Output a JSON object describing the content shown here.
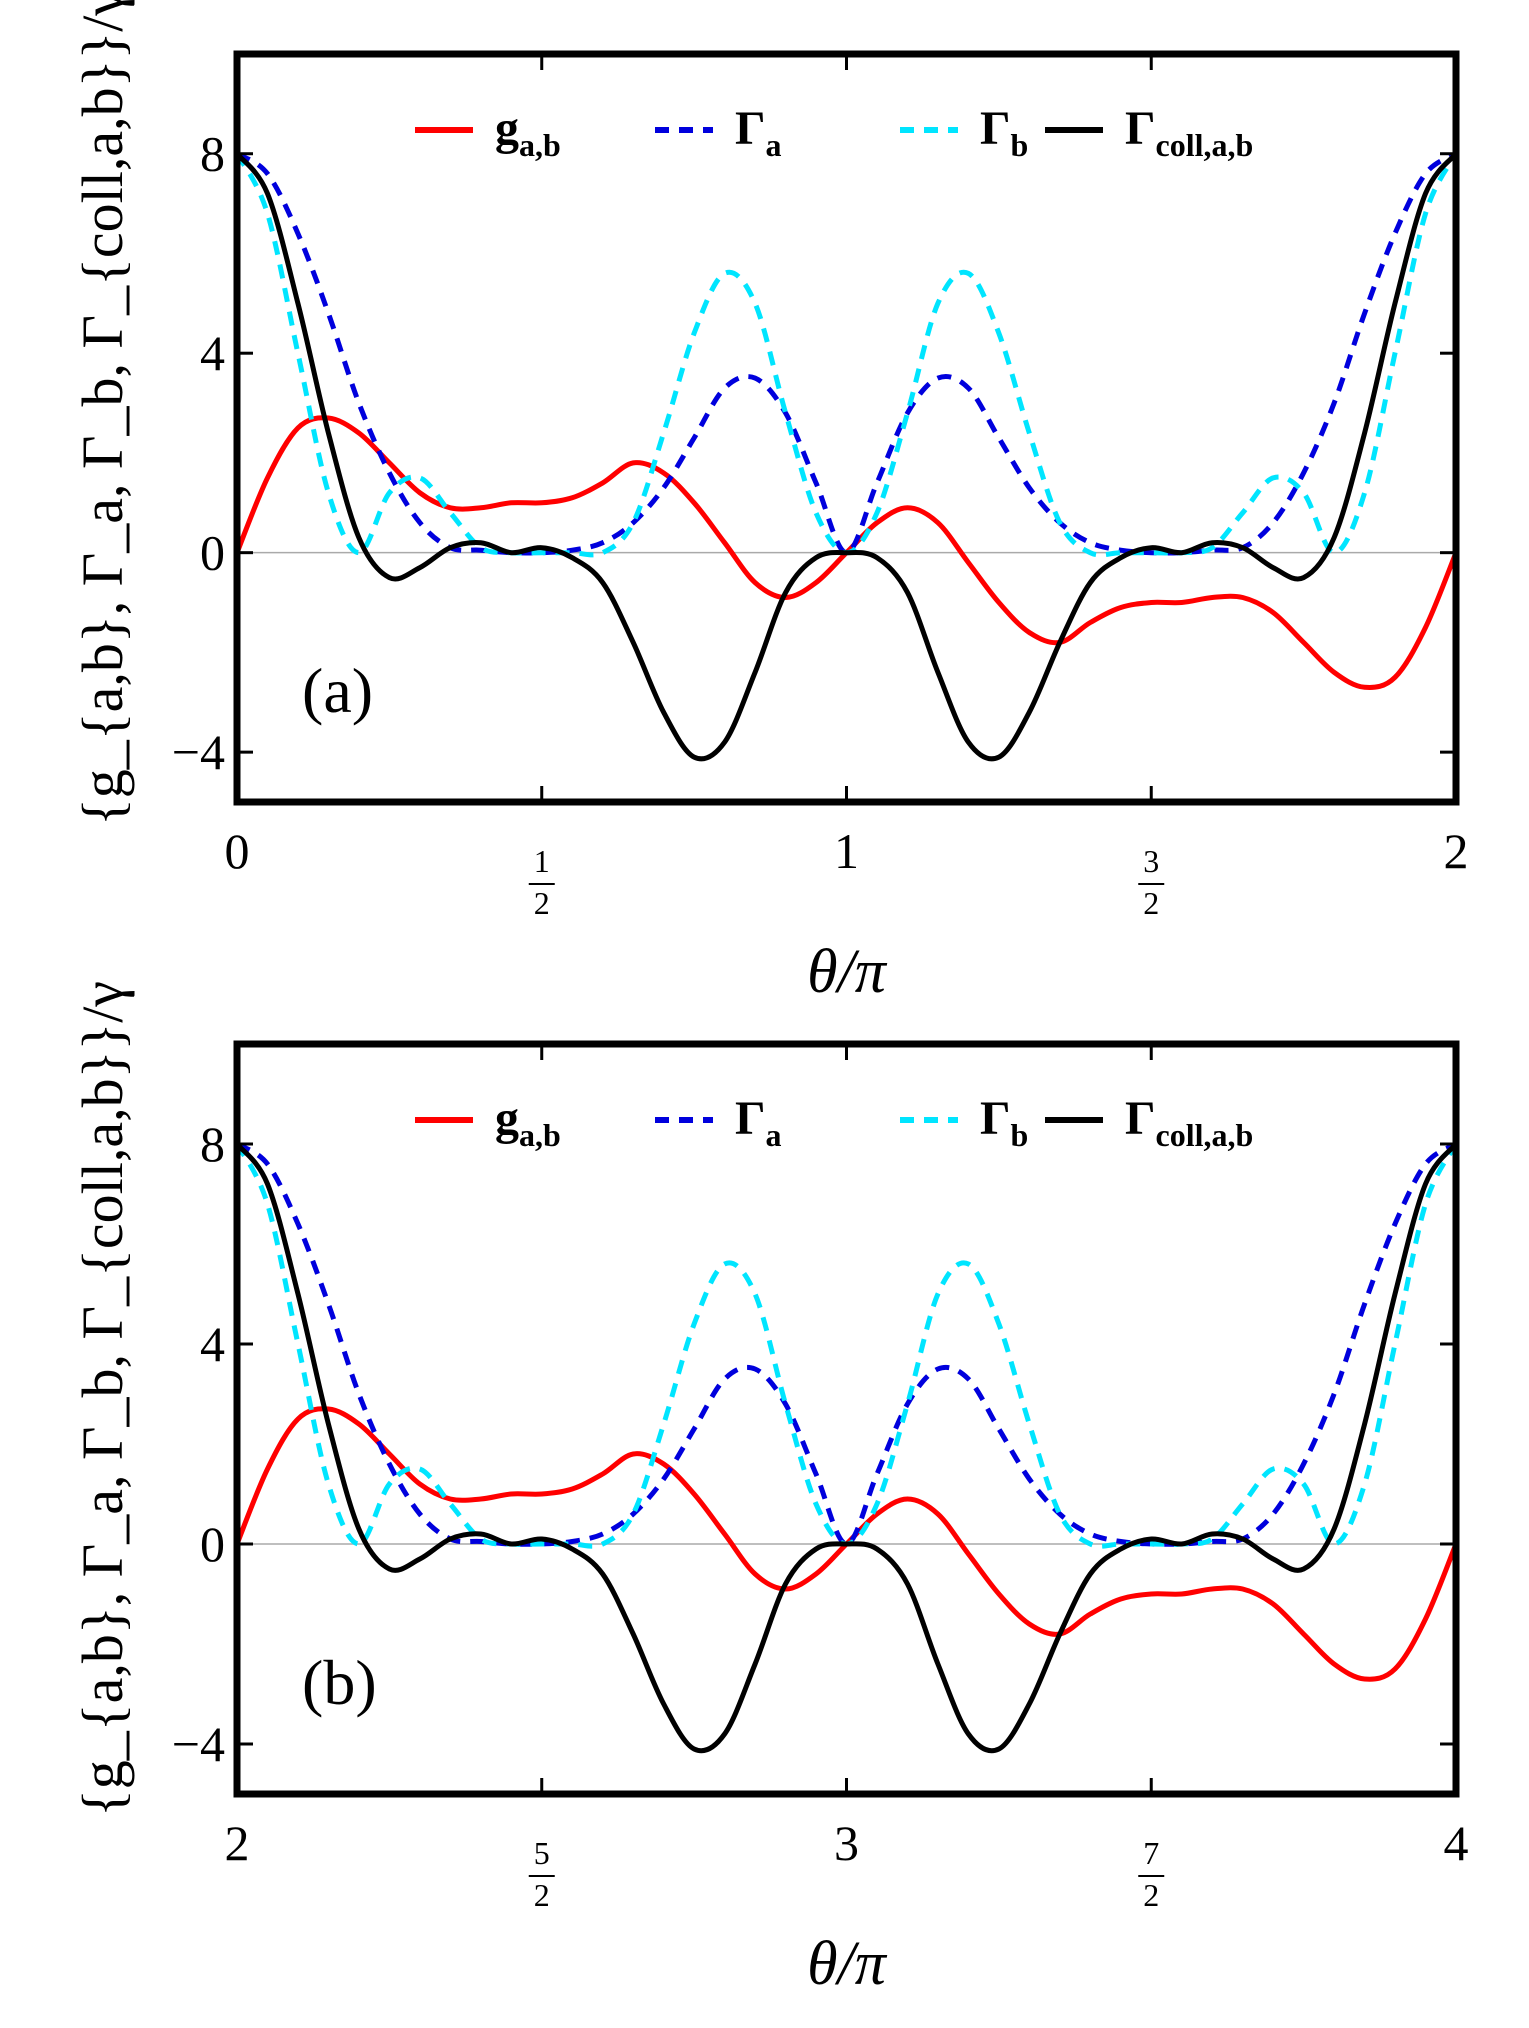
{
  "chart_data": [
    {
      "type": "line",
      "panel_label": "(a)",
      "xlabel": "θ/π",
      "ylabel": "{g_{a,b}, Γ_a, Γ_b, Γ_{coll,a,b}}/γ",
      "xlim": [
        0,
        2
      ],
      "ylim": [
        -5,
        10
      ],
      "grid": false,
      "legend_position": "top",
      "xticks": [
        {
          "value": 0,
          "label": "0"
        },
        {
          "value": 0.5,
          "label": "1/2",
          "num": "1",
          "den": "2"
        },
        {
          "value": 1,
          "label": "1"
        },
        {
          "value": 1.5,
          "label": "3/2",
          "num": "3",
          "den": "2"
        },
        {
          "value": 2,
          "label": "2"
        }
      ],
      "yticks": [
        {
          "value": -4,
          "label": "−4"
        },
        {
          "value": 0,
          "label": "0"
        },
        {
          "value": 4,
          "label": "4"
        },
        {
          "value": 8,
          "label": "8"
        }
      ],
      "series": [
        {
          "name": "g_{a,b}",
          "label_main": "g",
          "label_sub": "a,b",
          "color": "#ff0000",
          "style": "solid",
          "x": [
            0,
            0.05,
            0.1,
            0.15,
            0.2,
            0.25,
            0.3,
            0.35,
            0.4,
            0.45,
            0.5,
            0.55,
            0.6,
            0.65,
            0.7,
            0.75,
            0.8,
            0.85,
            0.9,
            0.95,
            1.0,
            1.05,
            1.1,
            1.15,
            1.2,
            1.25,
            1.3,
            1.35,
            1.4,
            1.45,
            1.5,
            1.55,
            1.6,
            1.65,
            1.7,
            1.75,
            1.8,
            1.85,
            1.9,
            1.95,
            2.0
          ],
          "y": [
            0,
            1.5,
            2.5,
            2.7,
            2.4,
            1.8,
            1.2,
            0.9,
            0.9,
            1.0,
            1.0,
            1.1,
            1.4,
            1.8,
            1.6,
            1.0,
            0.2,
            -0.6,
            -0.9,
            -0.6,
            0,
            0.6,
            0.9,
            0.6,
            -0.2,
            -1.0,
            -1.6,
            -1.8,
            -1.4,
            -1.1,
            -1.0,
            -1.0,
            -0.9,
            -0.9,
            -1.2,
            -1.8,
            -2.4,
            -2.7,
            -2.5,
            -1.5,
            0
          ]
        },
        {
          "name": "Γ_a",
          "label_main": "Γ",
          "label_sub": "a",
          "color": "#0000dd",
          "style": "dashed",
          "x": [
            0,
            0.05,
            0.1,
            0.15,
            0.2,
            0.25,
            0.3,
            0.35,
            0.4,
            0.45,
            0.5,
            0.55,
            0.6,
            0.65,
            0.7,
            0.75,
            0.8,
            0.85,
            0.9,
            0.95,
            1.0,
            1.05,
            1.1,
            1.15,
            1.2,
            1.25,
            1.3,
            1.35,
            1.4,
            1.45,
            1.5,
            1.55,
            1.6,
            1.65,
            1.7,
            1.75,
            1.8,
            1.85,
            1.9,
            1.95,
            2.0
          ],
          "y": [
            8.0,
            7.6,
            6.4,
            4.8,
            3.0,
            1.6,
            0.6,
            0.1,
            0.05,
            0.0,
            0.0,
            0.05,
            0.2,
            0.6,
            1.3,
            2.3,
            3.3,
            3.5,
            2.8,
            1.4,
            0.0,
            1.4,
            2.8,
            3.5,
            3.3,
            2.3,
            1.3,
            0.6,
            0.2,
            0.05,
            0.0,
            0.0,
            0.05,
            0.1,
            0.6,
            1.6,
            3.0,
            4.8,
            6.4,
            7.6,
            8.0
          ]
        },
        {
          "name": "Γ_b",
          "label_main": "Γ",
          "label_sub": "b",
          "color": "#00e5ff",
          "style": "dashed",
          "x": [
            0,
            0.05,
            0.1,
            0.15,
            0.2,
            0.25,
            0.3,
            0.35,
            0.4,
            0.45,
            0.5,
            0.55,
            0.6,
            0.65,
            0.7,
            0.75,
            0.8,
            0.85,
            0.9,
            0.95,
            1.0,
            1.05,
            1.1,
            1.15,
            1.2,
            1.25,
            1.3,
            1.35,
            1.4,
            1.45,
            1.5,
            1.55,
            1.6,
            1.65,
            1.7,
            1.75,
            1.8,
            1.85,
            1.9,
            1.95,
            2.0
          ],
          "y": [
            8.0,
            6.8,
            4.0,
            1.2,
            0.0,
            1.2,
            1.5,
            0.8,
            0.1,
            0.0,
            0.0,
            0.0,
            0.0,
            0.6,
            2.4,
            4.4,
            5.6,
            5.0,
            2.8,
            0.8,
            0.0,
            0.8,
            2.8,
            5.0,
            5.6,
            4.4,
            2.4,
            0.6,
            0.0,
            0.0,
            0.0,
            0.0,
            0.1,
            0.8,
            1.5,
            1.2,
            0.0,
            1.2,
            4.0,
            6.8,
            8.0
          ]
        },
        {
          "name": "Γ_{coll,a,b}",
          "label_main": "Γ",
          "label_sub": "coll,a,b",
          "color": "#000000",
          "style": "solid",
          "x": [
            0,
            0.05,
            0.1,
            0.15,
            0.2,
            0.25,
            0.3,
            0.35,
            0.4,
            0.45,
            0.5,
            0.55,
            0.6,
            0.65,
            0.7,
            0.75,
            0.8,
            0.85,
            0.9,
            0.95,
            1.0,
            1.05,
            1.1,
            1.15,
            1.2,
            1.25,
            1.3,
            1.35,
            1.4,
            1.45,
            1.5,
            1.55,
            1.6,
            1.65,
            1.7,
            1.75,
            1.8,
            1.85,
            1.9,
            1.95,
            2.0
          ],
          "y": [
            8.0,
            7.2,
            5.0,
            2.4,
            0.3,
            -0.5,
            -0.3,
            0.1,
            0.2,
            0.0,
            0.1,
            -0.1,
            -0.6,
            -1.8,
            -3.2,
            -4.1,
            -3.8,
            -2.4,
            -0.8,
            -0.1,
            0.0,
            -0.1,
            -0.8,
            -2.4,
            -3.8,
            -4.1,
            -3.2,
            -1.8,
            -0.6,
            -0.1,
            0.1,
            0.0,
            0.2,
            0.1,
            -0.3,
            -0.5,
            0.3,
            2.4,
            5.0,
            7.2,
            8.0
          ]
        }
      ]
    },
    {
      "type": "line",
      "panel_label": "(b)",
      "xlabel": "θ/π",
      "ylabel": "{g_{a,b}, Γ_a, Γ_b, Γ_{coll,a,b}}/γ",
      "xlim": [
        2,
        4
      ],
      "ylim": [
        -5,
        10
      ],
      "grid": false,
      "legend_position": "top",
      "xticks": [
        {
          "value": 2,
          "label": "2"
        },
        {
          "value": 2.5,
          "label": "5/2",
          "num": "5",
          "den": "2"
        },
        {
          "value": 3,
          "label": "3"
        },
        {
          "value": 3.5,
          "label": "7/2",
          "num": "7",
          "den": "2"
        },
        {
          "value": 4,
          "label": "4"
        }
      ],
      "yticks": [
        {
          "value": -4,
          "label": "−4"
        },
        {
          "value": 0,
          "label": "0"
        },
        {
          "value": 4,
          "label": "4"
        },
        {
          "value": 8,
          "label": "8"
        }
      ],
      "series": [
        {
          "name": "g_{a,b}",
          "label_main": "g",
          "label_sub": "a,b",
          "color": "#ff0000",
          "style": "solid",
          "x": [
            2.0,
            2.05,
            2.1,
            2.15,
            2.2,
            2.25,
            2.3,
            2.35,
            2.4,
            2.45,
            2.5,
            2.55,
            2.6,
            2.65,
            2.7,
            2.75,
            2.8,
            2.85,
            2.9,
            2.95,
            3.0,
            3.05,
            3.1,
            3.15,
            3.2,
            3.25,
            3.3,
            3.35,
            3.4,
            3.45,
            3.5,
            3.55,
            3.6,
            3.65,
            3.7,
            3.75,
            3.8,
            3.85,
            3.9,
            3.95,
            4.0
          ],
          "y": [
            0,
            1.5,
            2.5,
            2.7,
            2.4,
            1.8,
            1.2,
            0.9,
            0.9,
            1.0,
            1.0,
            1.1,
            1.4,
            1.8,
            1.6,
            1.0,
            0.2,
            -0.6,
            -0.9,
            -0.6,
            0,
            0.6,
            0.9,
            0.6,
            -0.2,
            -1.0,
            -1.6,
            -1.8,
            -1.4,
            -1.1,
            -1.0,
            -1.0,
            -0.9,
            -0.9,
            -1.2,
            -1.8,
            -2.4,
            -2.7,
            -2.5,
            -1.5,
            0
          ]
        },
        {
          "name": "Γ_a",
          "label_main": "Γ",
          "label_sub": "a",
          "color": "#0000dd",
          "style": "dashed",
          "x": [
            2.0,
            2.05,
            2.1,
            2.15,
            2.2,
            2.25,
            2.3,
            2.35,
            2.4,
            2.45,
            2.5,
            2.55,
            2.6,
            2.65,
            2.7,
            2.75,
            2.8,
            2.85,
            2.9,
            2.95,
            3.0,
            3.05,
            3.1,
            3.15,
            3.2,
            3.25,
            3.3,
            3.35,
            3.4,
            3.45,
            3.5,
            3.55,
            3.6,
            3.65,
            3.7,
            3.75,
            3.8,
            3.85,
            3.9,
            3.95,
            4.0
          ],
          "y": [
            8.0,
            7.6,
            6.4,
            4.8,
            3.0,
            1.6,
            0.6,
            0.1,
            0.05,
            0.0,
            0.0,
            0.05,
            0.2,
            0.6,
            1.3,
            2.3,
            3.3,
            3.5,
            2.8,
            1.4,
            0.0,
            1.4,
            2.8,
            3.5,
            3.3,
            2.3,
            1.3,
            0.6,
            0.2,
            0.05,
            0.0,
            0.0,
            0.05,
            0.1,
            0.6,
            1.6,
            3.0,
            4.8,
            6.4,
            7.6,
            8.0
          ]
        },
        {
          "name": "Γ_b",
          "label_main": "Γ",
          "label_sub": "b",
          "color": "#00e5ff",
          "style": "dashed",
          "x": [
            2.0,
            2.05,
            2.1,
            2.15,
            2.2,
            2.25,
            2.3,
            2.35,
            2.4,
            2.45,
            2.5,
            2.55,
            2.6,
            2.65,
            2.7,
            2.75,
            2.8,
            2.85,
            2.9,
            2.95,
            3.0,
            3.05,
            3.1,
            3.15,
            3.2,
            3.25,
            3.3,
            3.35,
            3.4,
            3.45,
            3.5,
            3.55,
            3.6,
            3.65,
            3.7,
            3.75,
            3.8,
            3.85,
            3.9,
            3.95,
            4.0
          ],
          "y": [
            8.0,
            6.8,
            4.0,
            1.2,
            0.0,
            1.2,
            1.5,
            0.8,
            0.1,
            0.0,
            0.0,
            0.0,
            0.0,
            0.6,
            2.4,
            4.4,
            5.6,
            5.0,
            2.8,
            0.8,
            0.0,
            0.8,
            2.8,
            5.0,
            5.6,
            4.4,
            2.4,
            0.6,
            0.0,
            0.0,
            0.0,
            0.0,
            0.1,
            0.8,
            1.5,
            1.2,
            0.0,
            1.2,
            4.0,
            6.8,
            8.0
          ]
        },
        {
          "name": "Γ_{coll,a,b}",
          "label_main": "Γ",
          "label_sub": "coll,a,b",
          "color": "#000000",
          "style": "solid",
          "x": [
            2.0,
            2.05,
            2.1,
            2.15,
            2.2,
            2.25,
            2.3,
            2.35,
            2.4,
            2.45,
            2.5,
            2.55,
            2.6,
            2.65,
            2.7,
            2.75,
            2.8,
            2.85,
            2.9,
            2.95,
            3.0,
            3.05,
            3.1,
            3.15,
            3.2,
            3.25,
            3.3,
            3.35,
            3.4,
            3.45,
            3.5,
            3.55,
            3.6,
            3.65,
            3.7,
            3.75,
            3.8,
            3.85,
            3.9,
            3.95,
            4.0
          ],
          "y": [
            8.0,
            7.2,
            5.0,
            2.4,
            0.3,
            -0.5,
            -0.3,
            0.1,
            0.2,
            0.0,
            0.1,
            -0.1,
            -0.6,
            -1.8,
            -3.2,
            -4.1,
            -3.8,
            -2.4,
            -0.8,
            -0.1,
            0.0,
            -0.1,
            -0.8,
            -2.4,
            -3.8,
            -4.1,
            -3.2,
            -1.8,
            -0.6,
            -0.1,
            0.1,
            0.0,
            0.2,
            0.1,
            -0.3,
            -0.5,
            0.3,
            2.4,
            5.0,
            7.2,
            8.0
          ]
        }
      ]
    }
  ]
}
